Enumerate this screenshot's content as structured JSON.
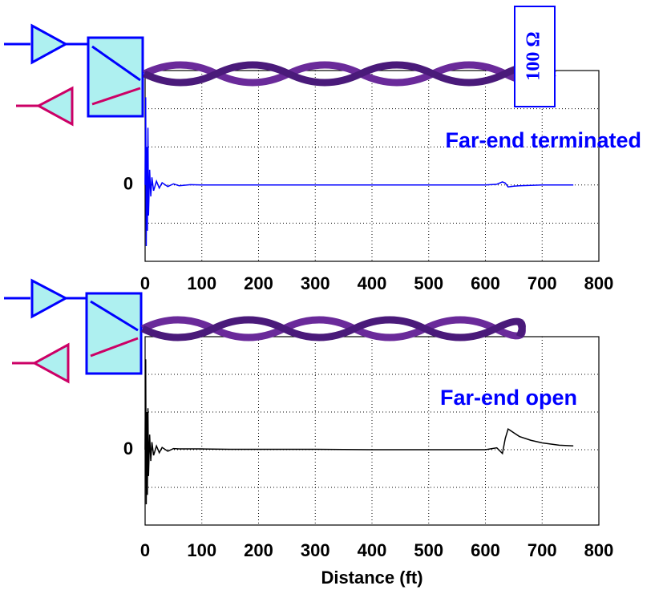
{
  "chart_data": [
    {
      "type": "line",
      "annotations": [
        "Far-end terminated",
        "100 Ω"
      ],
      "x": [
        0,
        1,
        2,
        3,
        4,
        5,
        6,
        8,
        10,
        12,
        15,
        20,
        25,
        30,
        40,
        50,
        60,
        80,
        100,
        150,
        200,
        300,
        400,
        500,
        600,
        620,
        630,
        635,
        640,
        650,
        660,
        680,
        700,
        730,
        755
      ],
      "series": [
        {
          "color": "#0000ff",
          "values": [
            0,
            2.3,
            -1.6,
            1.0,
            -1.2,
            1.5,
            -0.8,
            0.4,
            -0.3,
            0.2,
            -0.15,
            0.1,
            -0.08,
            0.06,
            -0.04,
            0.03,
            -0.02,
            0.01,
            0,
            0,
            0,
            0,
            0,
            0,
            0,
            0.02,
            0.08,
            0.05,
            -0.05,
            -0.03,
            -0.02,
            -0.01,
            0,
            0,
            0
          ]
        }
      ],
      "xlim": [
        0,
        800
      ],
      "xticks": [
        0,
        100,
        200,
        300,
        400,
        500,
        600,
        700,
        800
      ],
      "ylim": [
        -2,
        3
      ],
      "yticks": [
        0
      ],
      "grid": true
    },
    {
      "type": "line",
      "annotations": [
        "Far-end open"
      ],
      "x_label": "Distance (ft)",
      "x": [
        0,
        1,
        2,
        3,
        4,
        5,
        6,
        8,
        10,
        12,
        15,
        20,
        25,
        30,
        40,
        50,
        60,
        80,
        100,
        150,
        200,
        300,
        400,
        500,
        600,
        620,
        630,
        635,
        640,
        650,
        660,
        680,
        700,
        730,
        755
      ],
      "series": [
        {
          "color": "#000000",
          "values": [
            0,
            2.4,
            -1.45,
            1.0,
            -1.2,
            1.1,
            -0.7,
            0.4,
            -0.3,
            0.2,
            -0.15,
            0.1,
            -0.08,
            0.06,
            -0.04,
            0.03,
            0.02,
            0.02,
            0.02,
            0.01,
            0.01,
            0.01,
            0,
            0,
            0,
            0.05,
            -0.1,
            0.3,
            0.55,
            0.45,
            0.35,
            0.25,
            0.18,
            0.12,
            0.1
          ]
        }
      ],
      "xlim": [
        0,
        800
      ],
      "xticks": [
        0,
        100,
        200,
        300,
        400,
        500,
        600,
        700,
        800
      ],
      "ylim": [
        -2,
        3
      ],
      "yticks": [
        0
      ],
      "grid": true
    }
  ]
}
